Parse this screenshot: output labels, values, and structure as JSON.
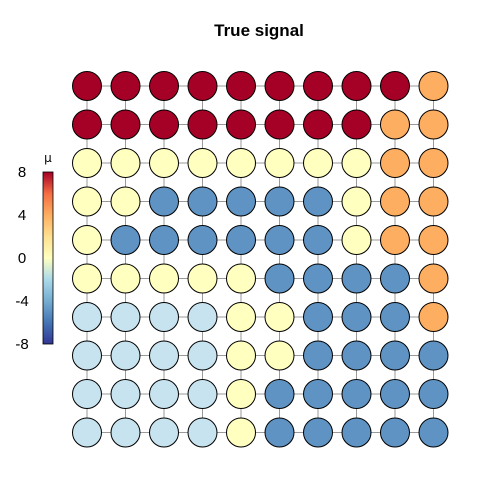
{
  "chart_data": {
    "type": "heatmap",
    "title": "True signal",
    "legend": {
      "title": "μ",
      "ticks": [
        "8",
        "4",
        "0",
        "-4",
        "-8"
      ],
      "tick_values": [
        8,
        4,
        0,
        -4,
        -8
      ],
      "range": [
        -8,
        8
      ],
      "placement": "left"
    },
    "grid": {
      "rows": 10,
      "cols": 10,
      "lattice_edges": true
    },
    "colors": {
      "high": "#a50026",
      "mid_high": "#fdae61",
      "neutral": "#ffffbf",
      "mid_low": "#c6e3ef",
      "low": "#5e93c4"
    },
    "values": [
      [
        8,
        8,
        8,
        8,
        8,
        8,
        8,
        8,
        8,
        4
      ],
      [
        8,
        8,
        8,
        8,
        8,
        8,
        8,
        8,
        4,
        4
      ],
      [
        0,
        0,
        0,
        0,
        0,
        0,
        0,
        0,
        4,
        4
      ],
      [
        0,
        0,
        -4,
        -4,
        -4,
        -4,
        -4,
        0,
        4,
        4
      ],
      [
        0,
        -4,
        -4,
        -4,
        -4,
        -4,
        -4,
        0,
        4,
        4
      ],
      [
        0,
        0,
        0,
        0,
        0,
        -4,
        -4,
        -4,
        -4,
        4
      ],
      [
        -2,
        -2,
        -2,
        -2,
        0,
        0,
        -4,
        -4,
        -4,
        4
      ],
      [
        -2,
        -2,
        -2,
        -2,
        0,
        0,
        -4,
        -4,
        -4,
        -4
      ],
      [
        -2,
        -2,
        -2,
        -2,
        0,
        -4,
        -4,
        -4,
        -4,
        -4
      ],
      [
        -2,
        -2,
        -2,
        -2,
        0,
        -4,
        -4,
        -4,
        -4,
        -4
      ]
    ]
  }
}
